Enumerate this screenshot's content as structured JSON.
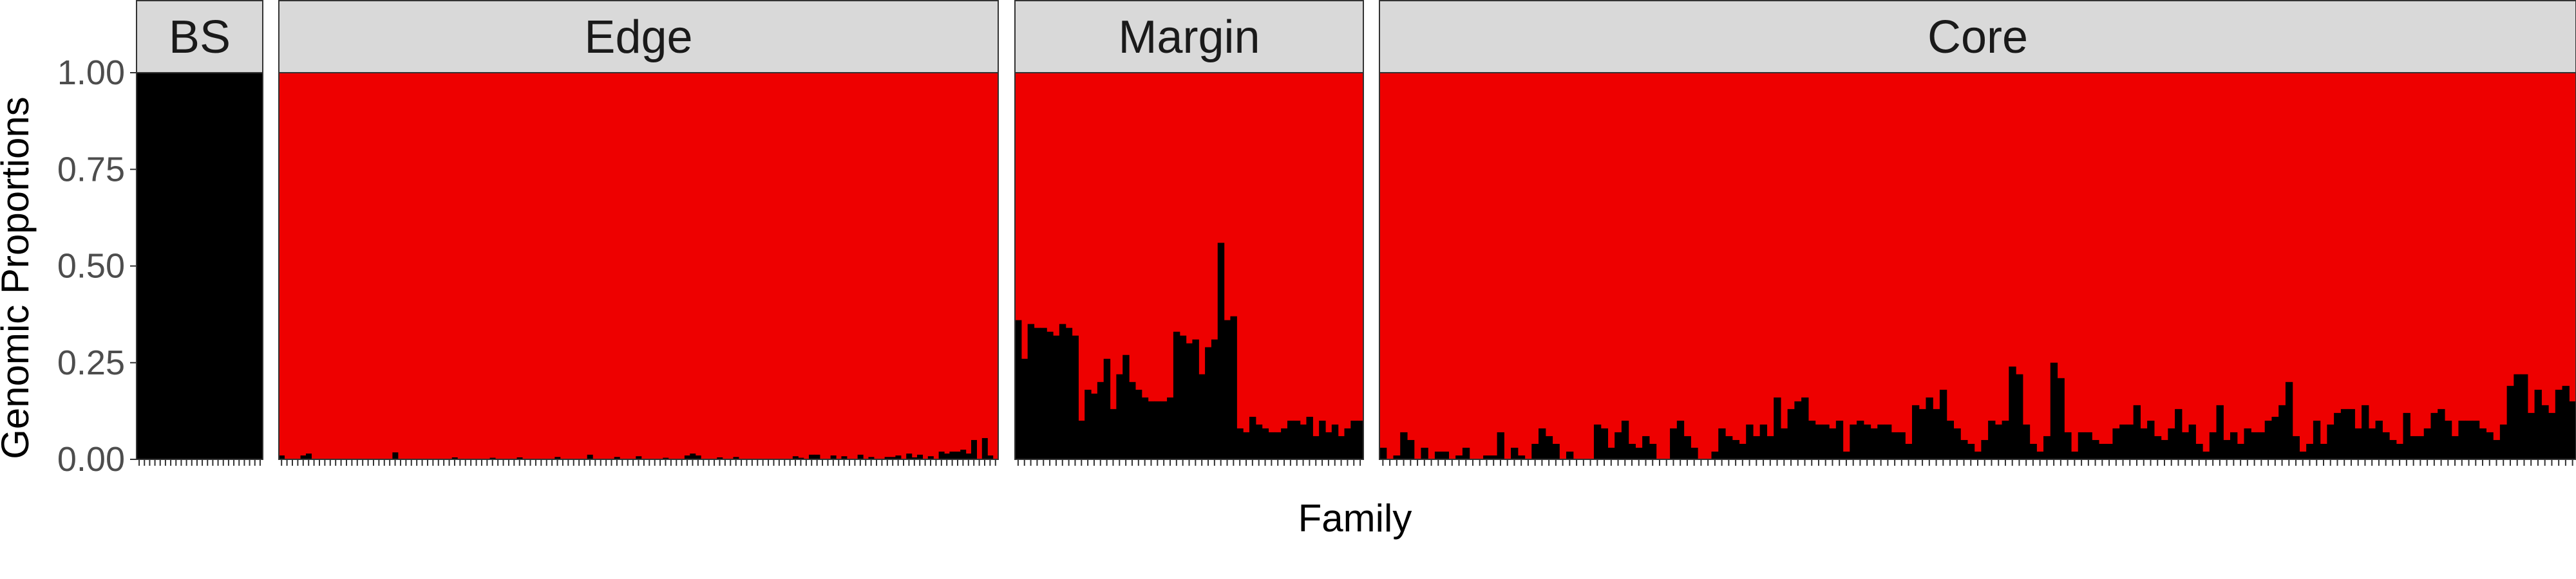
{
  "chart_data": {
    "type": "bar",
    "stacked": true,
    "xlabel": "Family",
    "ylabel": "Genomic Proportions",
    "ylim": [
      0,
      1
    ],
    "yticks": [
      "0.00",
      "0.25",
      "0.50",
      "0.75",
      "1.00"
    ],
    "colors": {
      "ancestry_1": "#000000",
      "ancestry_2": "#ee0000",
      "strip_bg": "#d9d9d9"
    },
    "panels": [
      {
        "label": "BS",
        "black_proportion": [
          1,
          1,
          1,
          1,
          1,
          1,
          1,
          1,
          1,
          1,
          1,
          1,
          1,
          1,
          1,
          1,
          1,
          1,
          1,
          1,
          1,
          1,
          1,
          1
        ]
      },
      {
        "label": "Edge",
        "black_proportion": [
          0.01,
          0,
          0,
          0,
          0.01,
          0.015,
          0,
          0,
          0,
          0,
          0,
          0,
          0,
          0,
          0,
          0,
          0,
          0,
          0,
          0,
          0,
          0.018,
          0,
          0,
          0,
          0,
          0,
          0,
          0,
          0,
          0,
          0,
          0.005,
          0,
          0,
          0,
          0,
          0,
          0,
          0.004,
          0,
          0,
          0,
          0,
          0.005,
          0,
          0,
          0,
          0,
          0,
          0,
          0.006,
          0,
          0,
          0,
          0,
          0,
          0.012,
          0,
          0,
          0,
          0,
          0.006,
          0,
          0,
          0,
          0.008,
          0,
          0,
          0,
          0,
          0.004,
          0,
          0,
          0,
          0.01,
          0.015,
          0.01,
          0,
          0,
          0,
          0.005,
          0,
          0,
          0.006,
          0,
          0,
          0,
          0,
          0,
          0,
          0,
          0,
          0,
          0,
          0.008,
          0.004,
          0,
          0.012,
          0.012,
          0,
          0,
          0.01,
          0,
          0.008,
          0,
          0,
          0.012,
          0,
          0.006,
          0,
          0,
          0.006,
          0.006,
          0.01,
          0,
          0.015,
          0.005,
          0.012,
          0,
          0.008,
          0,
          0.02,
          0.015,
          0.02,
          0.02,
          0.025,
          0.015,
          0.05,
          0,
          0.055,
          0.01,
          0
        ]
      },
      {
        "label": "Margin",
        "black_proportion": [
          0.36,
          0.26,
          0.35,
          0.34,
          0.34,
          0.33,
          0.32,
          0.35,
          0.34,
          0.32,
          0.1,
          0.18,
          0.17,
          0.2,
          0.26,
          0.13,
          0.22,
          0.27,
          0.2,
          0.18,
          0.16,
          0.15,
          0.15,
          0.15,
          0.16,
          0.33,
          0.32,
          0.3,
          0.31,
          0.22,
          0.29,
          0.31,
          0.56,
          0.36,
          0.37,
          0.08,
          0.07,
          0.11,
          0.09,
          0.08,
          0.07,
          0.07,
          0.08,
          0.1,
          0.1,
          0.09,
          0.11,
          0.06,
          0.1,
          0.07,
          0.09,
          0.06,
          0.08,
          0.1,
          0.1
        ]
      },
      {
        "label": "Core",
        "black_proportion": [
          0.03,
          0,
          0.01,
          0.07,
          0.05,
          0,
          0.03,
          0,
          0.02,
          0.02,
          0,
          0.01,
          0.03,
          0,
          0,
          0.01,
          0.01,
          0.07,
          0,
          0.03,
          0.01,
          0,
          0.04,
          0.08,
          0.06,
          0.04,
          0,
          0.02,
          0,
          0,
          0,
          0.09,
          0.08,
          0.03,
          0.07,
          0.1,
          0.04,
          0.03,
          0.06,
          0.04,
          0,
          0,
          0.08,
          0.1,
          0.06,
          0.03,
          0,
          0,
          0.02,
          0.08,
          0.06,
          0.05,
          0.04,
          0.09,
          0.06,
          0.09,
          0.06,
          0.16,
          0.08,
          0.13,
          0.15,
          0.16,
          0.1,
          0.09,
          0.09,
          0.08,
          0.1,
          0.02,
          0.09,
          0.1,
          0.09,
          0.08,
          0.09,
          0.09,
          0.07,
          0.07,
          0.04,
          0.14,
          0.13,
          0.16,
          0.13,
          0.18,
          0.1,
          0.08,
          0.05,
          0.04,
          0.02,
          0.05,
          0.1,
          0.09,
          0.1,
          0.24,
          0.22,
          0.09,
          0.04,
          0.02,
          0.06,
          0.25,
          0.21,
          0.07,
          0.02,
          0.07,
          0.07,
          0.05,
          0.04,
          0.04,
          0.08,
          0.09,
          0.09,
          0.14,
          0.08,
          0.1,
          0.06,
          0.05,
          0.08,
          0.13,
          0.07,
          0.09,
          0.04,
          0.02,
          0.07,
          0.14,
          0.05,
          0.07,
          0.04,
          0.08,
          0.07,
          0.07,
          0.1,
          0.11,
          0.14,
          0.2,
          0.06,
          0.02,
          0.04,
          0.1,
          0.04,
          0.09,
          0.12,
          0.13,
          0.13,
          0.08,
          0.14,
          0.08,
          0.1,
          0.07,
          0.05,
          0.04,
          0.12,
          0.06,
          0.06,
          0.08,
          0.12,
          0.13,
          0.1,
          0.06,
          0.1,
          0.1,
          0.1,
          0.08,
          0.07,
          0.05,
          0.09,
          0.19,
          0.22,
          0.22,
          0.12,
          0.18,
          0.14,
          0.12,
          0.18,
          0.19,
          0.15
        ]
      }
    ]
  }
}
